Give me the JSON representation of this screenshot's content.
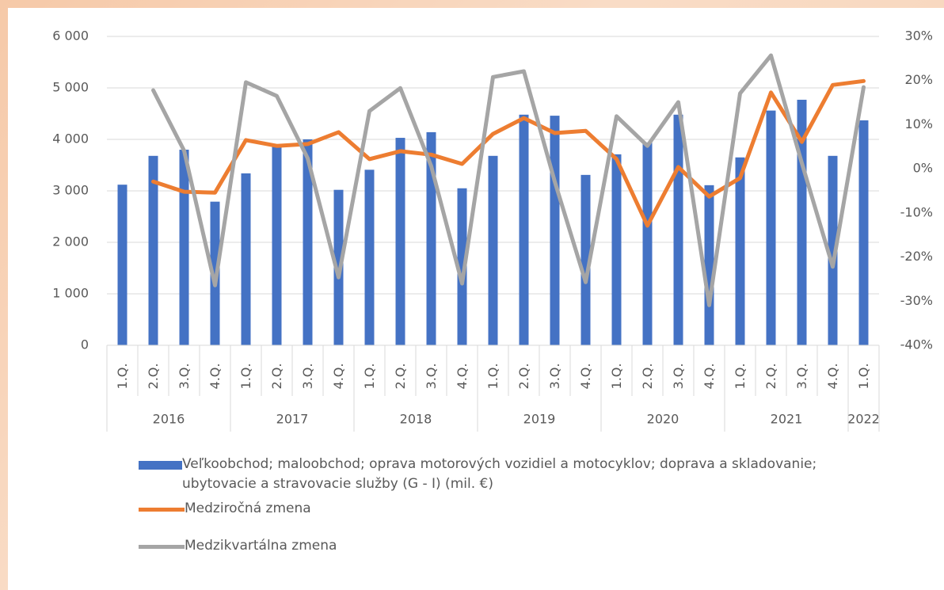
{
  "chart_data": {
    "type": "bar-line",
    "categories": [
      "1.Q.",
      "2.Q.",
      "3.Q.",
      "4.Q.",
      "1.Q.",
      "2.Q.",
      "3.Q.",
      "4.Q.",
      "1.Q.",
      "2.Q.",
      "3.Q.",
      "4.Q.",
      "1.Q.",
      "2.Q.",
      "3.Q.",
      "4.Q.",
      "1.Q.",
      "2.Q.",
      "3.Q.",
      "4.Q.",
      "1.Q.",
      "2.Q.",
      "3.Q.",
      "4.Q.",
      "1.Q."
    ],
    "category_groups": [
      "2016",
      "2016",
      "2016",
      "2016",
      "2017",
      "2017",
      "2017",
      "2017",
      "2018",
      "2018",
      "2018",
      "2018",
      "2019",
      "2019",
      "2019",
      "2019",
      "2020",
      "2020",
      "2020",
      "2020",
      "2021",
      "2021",
      "2021",
      "2021",
      "2022"
    ],
    "series": [
      {
        "name": "Veľkoobchod; maloobchod; oprava motorových vozidiel a motocyklov; doprava a skladovanie; ubytovacie a stravovacie služby (G - I) (mil. €)",
        "type": "bar",
        "color": "#4472c4",
        "values": [
          3120,
          3680,
          3800,
          2790,
          3340,
          3860,
          4000,
          3020,
          3410,
          4030,
          4140,
          3050,
          3680,
          4480,
          4460,
          3310,
          3710,
          3940,
          4480,
          3110,
          3650,
          4560,
          4770,
          3680,
          4370
        ]
      },
      {
        "name": "Medziročná zmena",
        "type": "line",
        "axis": "y2",
        "color": "#ed7d31",
        "values": [
          null,
          -2.9,
          -5.2,
          -5.4,
          6.5,
          5.2,
          5.6,
          8.3,
          2.2,
          4.0,
          3.2,
          1.1,
          7.9,
          11.5,
          8.1,
          8.6,
          2.2,
          -12.9,
          0.4,
          -6.3,
          -2.1,
          17.3,
          6.1,
          19.0,
          19.9
        ]
      },
      {
        "name": "Medzikvartálna zmena",
        "type": "line",
        "axis": "y2",
        "color": "#a5a5a5",
        "values": [
          null,
          17.8,
          4.1,
          -26.4,
          19.6,
          16.5,
          2.4,
          -24.6,
          13.1,
          18.3,
          0.6,
          -26.0,
          20.8,
          22.1,
          -2.9,
          -25.7,
          11.9,
          5.2,
          15.1,
          -30.9,
          17.1,
          25.7,
          1.3,
          -22.2,
          18.5
        ]
      }
    ],
    "ylim": [
      0,
      6000
    ],
    "yticks": [
      0,
      {
        "value": 1000,
        "label": "1 000"
      },
      {
        "value": 2000,
        "label": "2 000"
      },
      {
        "value": 3000,
        "label": "3 000"
      },
      {
        "value": 4000,
        "label": "4 000"
      },
      {
        "value": 5000,
        "label": "5 000"
      },
      {
        "value": 6000,
        "label": "6 000"
      }
    ],
    "y2lim": [
      -40,
      30
    ],
    "y2ticks": [
      {
        "value": -40,
        "label": "-40%"
      },
      {
        "value": -30,
        "label": "-30%"
      },
      {
        "value": -20,
        "label": "-20%"
      },
      {
        "value": -10,
        "label": "-10%"
      },
      {
        "value": 0,
        "label": "0%"
      },
      {
        "value": 10,
        "label": "10%"
      },
      {
        "value": 20,
        "label": "20%"
      },
      {
        "value": 30,
        "label": "30%"
      }
    ],
    "grid": true
  }
}
